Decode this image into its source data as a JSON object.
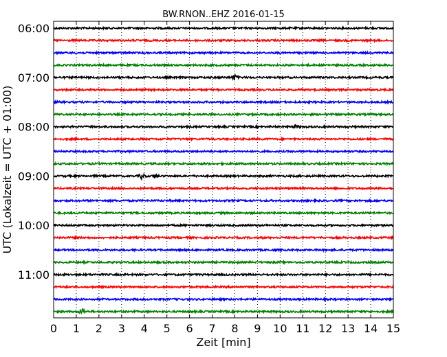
{
  "chart_data": {
    "type": "line",
    "title": "BW.RNON..EHZ 2016-01-15",
    "xlabel": "Zeit  [min]",
    "ylabel": "UTC (Lokalzeit = UTC + 01:00)",
    "xlim": [
      0,
      15
    ],
    "x_ticks": [
      "0",
      "1",
      "2",
      "3",
      "4",
      "5",
      "6",
      "7",
      "8",
      "9",
      "10",
      "11",
      "12",
      "13",
      "14",
      "15"
    ],
    "y_ticks": [
      "06:00",
      "07:00",
      "08:00",
      "09:00",
      "10:00",
      "11:00"
    ],
    "grid": "vertical dotted",
    "trace_start_times": [
      "06:00",
      "06:15",
      "06:30",
      "06:45",
      "07:00",
      "07:15",
      "07:30",
      "07:45",
      "08:00",
      "08:15",
      "08:30",
      "08:45",
      "09:00",
      "09:15",
      "09:30",
      "09:45",
      "10:00",
      "10:15",
      "10:30",
      "10:45",
      "11:00",
      "11:15",
      "11:30",
      "11:45"
    ],
    "trace_colors": [
      "#000000",
      "#ff0000",
      "#0000ff",
      "#008000"
    ],
    "events": [
      {
        "trace": "07:00",
        "x_min": 8.0,
        "amplitude": 2.2
      },
      {
        "trace": "09:00",
        "x_min": 3.9,
        "amplitude": 2.6
      },
      {
        "trace": "09:00",
        "x_min": 4.5,
        "amplitude": 1.8
      },
      {
        "trace": "11:45",
        "x_min": 1.25,
        "amplitude": 2.4
      },
      {
        "trace": "08:00",
        "x_min": 10.7,
        "amplitude": 1.2
      }
    ]
  }
}
